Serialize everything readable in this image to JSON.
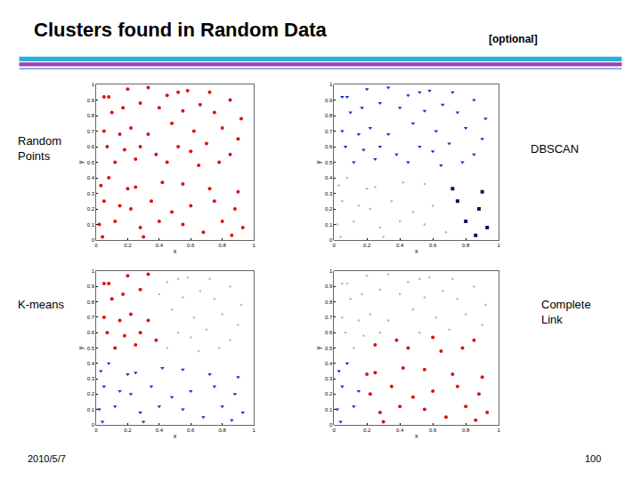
{
  "slide": {
    "title": "Clusters found in Random Data",
    "tag": "[optional]",
    "date": "2010/5/7",
    "page": 100
  },
  "chart_data": [
    {
      "type": "scatter",
      "title": "Random Points",
      "xlabel": "x",
      "ylabel": "y",
      "xlim": [
        0,
        1
      ],
      "ylim": [
        0,
        1
      ],
      "xticks": [
        0,
        0.2,
        0.4,
        0.6,
        0.8,
        1
      ],
      "yticks": [
        0,
        0.1,
        0.2,
        0.3,
        0.4,
        0.5,
        0.6,
        0.7,
        0.8,
        0.9,
        1
      ],
      "series": [
        {
          "color": "#dd1111",
          "marker": "circle",
          "x": [
            0.05,
            0.08,
            0.2,
            0.33,
            0.45,
            0.52,
            0.58,
            0.72,
            0.85,
            0.1,
            0.17,
            0.28,
            0.4,
            0.55,
            0.66,
            0.75,
            0.92,
            0.05,
            0.15,
            0.22,
            0.33,
            0.48,
            0.62,
            0.8,
            0.9,
            0.07,
            0.18,
            0.28,
            0.38,
            0.52,
            0.6,
            0.7,
            0.85,
            0.12,
            0.25,
            0.45,
            0.65,
            0.78,
            0.03,
            0.08,
            0.2,
            0.25,
            0.42,
            0.55,
            0.72,
            0.9,
            0.05,
            0.15,
            0.22,
            0.35,
            0.48,
            0.6,
            0.75,
            0.88,
            0.02,
            0.12,
            0.28,
            0.4,
            0.55,
            0.68,
            0.8,
            0.93,
            0.04,
            0.3,
            0.86
          ],
          "values": [
            0.92,
            0.92,
            0.97,
            0.98,
            0.93,
            0.95,
            0.96,
            0.95,
            0.9,
            0.82,
            0.85,
            0.88,
            0.85,
            0.83,
            0.87,
            0.82,
            0.78,
            0.7,
            0.68,
            0.72,
            0.68,
            0.75,
            0.7,
            0.72,
            0.65,
            0.6,
            0.58,
            0.6,
            0.55,
            0.6,
            0.57,
            0.62,
            0.55,
            0.5,
            0.52,
            0.5,
            0.48,
            0.5,
            0.35,
            0.4,
            0.33,
            0.34,
            0.37,
            0.36,
            0.33,
            0.31,
            0.25,
            0.22,
            0.2,
            0.25,
            0.18,
            0.22,
            0.25,
            0.2,
            0.1,
            0.12,
            0.08,
            0.12,
            0.1,
            0.05,
            0.12,
            0.08,
            0.02,
            0.02,
            0.03
          ]
        }
      ]
    },
    {
      "type": "scatter",
      "title": "DBSCAN",
      "xlabel": "x",
      "ylabel": "y",
      "xlim": [
        0,
        1
      ],
      "ylim": [
        0,
        1
      ],
      "xticks": [
        0,
        0.2,
        0.4,
        0.6,
        0.8,
        1
      ],
      "yticks": [
        0,
        0.1,
        0.2,
        0.3,
        0.4,
        0.5,
        0.6,
        0.7,
        0.8,
        0.9,
        1
      ],
      "series": [
        {
          "color": "#1a2fbf",
          "marker": "triangle",
          "x": [
            0.05,
            0.08,
            0.2,
            0.33,
            0.45,
            0.52,
            0.58,
            0.72,
            0.85,
            0.1,
            0.17,
            0.28,
            0.4,
            0.55,
            0.66,
            0.75,
            0.92,
            0.05,
            0.15,
            0.22,
            0.33,
            0.48,
            0.62,
            0.8,
            0.9,
            0.07,
            0.18,
            0.28,
            0.38,
            0.52,
            0.6,
            0.7,
            0.85,
            0.12,
            0.25,
            0.45,
            0.65,
            0.78
          ],
          "values": [
            0.92,
            0.92,
            0.97,
            0.98,
            0.93,
            0.95,
            0.96,
            0.95,
            0.9,
            0.82,
            0.85,
            0.88,
            0.85,
            0.83,
            0.87,
            0.82,
            0.78,
            0.7,
            0.68,
            0.72,
            0.68,
            0.75,
            0.7,
            0.72,
            0.65,
            0.6,
            0.58,
            0.6,
            0.55,
            0.6,
            0.57,
            0.62,
            0.55,
            0.5,
            0.52,
            0.5,
            0.48,
            0.5
          ]
        },
        {
          "color": "#b5b5b5",
          "marker": "dot",
          "x": [
            0.03,
            0.08,
            0.2,
            0.25,
            0.42,
            0.55,
            0.05,
            0.15,
            0.22,
            0.35,
            0.48,
            0.6,
            0.02,
            0.12,
            0.28,
            0.4,
            0.55,
            0.68,
            0.04,
            0.3
          ],
          "values": [
            0.35,
            0.4,
            0.33,
            0.34,
            0.37,
            0.36,
            0.25,
            0.22,
            0.2,
            0.25,
            0.18,
            0.22,
            0.1,
            0.12,
            0.08,
            0.12,
            0.1,
            0.05,
            0.02,
            0.02
          ]
        },
        {
          "color": "#101060",
          "marker": "square",
          "x": [
            0.72,
            0.9,
            0.75,
            0.88,
            0.8,
            0.93,
            0.86
          ],
          "values": [
            0.33,
            0.31,
            0.25,
            0.2,
            0.12,
            0.08,
            0.03
          ]
        }
      ]
    },
    {
      "type": "scatter",
      "title": "K-means",
      "xlabel": "x",
      "ylabel": "y",
      "xlim": [
        0,
        1
      ],
      "ylim": [
        0,
        1
      ],
      "xticks": [
        0,
        0.2,
        0.4,
        0.6,
        0.8,
        1
      ],
      "yticks": [
        0,
        0.1,
        0.2,
        0.3,
        0.4,
        0.5,
        0.6,
        0.7,
        0.8,
        0.9,
        1
      ],
      "series": [
        {
          "color": "#dd1111",
          "marker": "circle",
          "x": [
            0.05,
            0.08,
            0.2,
            0.33,
            0.1,
            0.17,
            0.28,
            0.05,
            0.15,
            0.22,
            0.33,
            0.07,
            0.18,
            0.28,
            0.38,
            0.12,
            0.25
          ],
          "values": [
            0.92,
            0.92,
            0.97,
            0.98,
            0.82,
            0.85,
            0.88,
            0.7,
            0.68,
            0.72,
            0.68,
            0.6,
            0.58,
            0.6,
            0.55,
            0.5,
            0.52
          ]
        },
        {
          "color": "#c8b89a",
          "marker": "dot",
          "x": [
            0.45,
            0.52,
            0.58,
            0.72,
            0.85,
            0.4,
            0.55,
            0.66,
            0.75,
            0.92,
            0.48,
            0.62,
            0.8,
            0.9,
            0.52,
            0.6,
            0.7,
            0.85,
            0.45,
            0.65,
            0.78
          ],
          "values": [
            0.93,
            0.95,
            0.96,
            0.95,
            0.9,
            0.85,
            0.83,
            0.87,
            0.82,
            0.78,
            0.75,
            0.7,
            0.72,
            0.65,
            0.6,
            0.57,
            0.62,
            0.55,
            0.5,
            0.48,
            0.5
          ]
        },
        {
          "color": "#1a2fbf",
          "marker": "triangle",
          "x": [
            0.03,
            0.08,
            0.2,
            0.25,
            0.42,
            0.55,
            0.72,
            0.9,
            0.05,
            0.15,
            0.22,
            0.35,
            0.48,
            0.6,
            0.75,
            0.88,
            0.02,
            0.12,
            0.28,
            0.4,
            0.55,
            0.68,
            0.8,
            0.93,
            0.04,
            0.3,
            0.86
          ],
          "values": [
            0.35,
            0.4,
            0.33,
            0.34,
            0.37,
            0.36,
            0.33,
            0.31,
            0.25,
            0.22,
            0.2,
            0.25,
            0.18,
            0.22,
            0.25,
            0.2,
            0.1,
            0.12,
            0.08,
            0.12,
            0.1,
            0.05,
            0.12,
            0.08,
            0.02,
            0.02,
            0.03
          ]
        }
      ]
    },
    {
      "type": "scatter",
      "title": "Complete Link",
      "xlabel": "x",
      "ylabel": "y",
      "xlim": [
        0,
        1
      ],
      "ylim": [
        0,
        1
      ],
      "xticks": [
        0,
        0.2,
        0.4,
        0.6,
        0.8,
        1
      ],
      "yticks": [
        0,
        0.1,
        0.2,
        0.3,
        0.4,
        0.5,
        0.6,
        0.7,
        0.8,
        0.9,
        1
      ],
      "series": [
        {
          "color": "#b5b5b5",
          "marker": "dot",
          "x": [
            0.05,
            0.08,
            0.2,
            0.33,
            0.45,
            0.52,
            0.58,
            0.72,
            0.85,
            0.1,
            0.17,
            0.28,
            0.4,
            0.55,
            0.66,
            0.75,
            0.92,
            0.05,
            0.15,
            0.22,
            0.33,
            0.48,
            0.62,
            0.8,
            0.9,
            0.07,
            0.28,
            0.52,
            0.7,
            0.18,
            0.12
          ],
          "values": [
            0.92,
            0.92,
            0.97,
            0.98,
            0.93,
            0.95,
            0.96,
            0.95,
            0.9,
            0.82,
            0.85,
            0.88,
            0.85,
            0.83,
            0.87,
            0.82,
            0.78,
            0.7,
            0.68,
            0.72,
            0.68,
            0.75,
            0.7,
            0.72,
            0.65,
            0.6,
            0.6,
            0.6,
            0.62,
            0.58,
            0.5
          ]
        },
        {
          "color": "#dd1111",
          "marker": "circle",
          "x": [
            0.38,
            0.25,
            0.6,
            0.85,
            0.45,
            0.65,
            0.78,
            0.2,
            0.25,
            0.42,
            0.55,
            0.72,
            0.9,
            0.22,
            0.35,
            0.48,
            0.6,
            0.75,
            0.88,
            0.28,
            0.4,
            0.55,
            0.68,
            0.8,
            0.93,
            0.3,
            0.86
          ],
          "values": [
            0.55,
            0.52,
            0.57,
            0.55,
            0.5,
            0.48,
            0.5,
            0.33,
            0.34,
            0.37,
            0.36,
            0.33,
            0.31,
            0.2,
            0.25,
            0.18,
            0.22,
            0.25,
            0.2,
            0.08,
            0.12,
            0.1,
            0.05,
            0.12,
            0.08,
            0.02,
            0.03
          ]
        },
        {
          "color": "#1a2fbf",
          "marker": "triangle",
          "x": [
            0.03,
            0.08,
            0.05,
            0.15,
            0.02,
            0.12,
            0.04
          ],
          "values": [
            0.35,
            0.4,
            0.25,
            0.22,
            0.1,
            0.12,
            0.02
          ]
        }
      ]
    }
  ]
}
